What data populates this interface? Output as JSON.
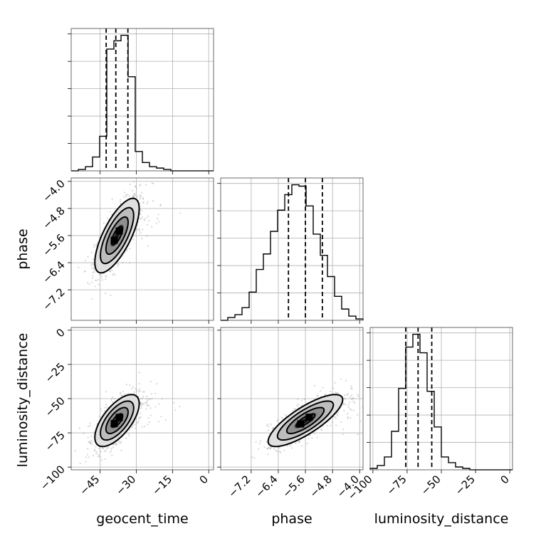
{
  "chart_data": {
    "type": "corner",
    "parameters": [
      "geocent_time",
      "phase",
      "luminosity_distance"
    ],
    "ranges": {
      "geocent_time": [
        -57,
        2
      ],
      "phase": [
        -8.1,
        -3.9
      ],
      "luminosity_distance": [
        -102,
        2
      ]
    },
    "ticks": {
      "geocent_time": [
        -45,
        -30,
        -15,
        0
      ],
      "phase": [
        -7.2,
        -6.4,
        -5.6,
        -4.8,
        -4.0
      ],
      "luminosity_distance": [
        -100,
        -75,
        -50,
        -25,
        0
      ]
    },
    "tick_labels": {
      "geocent_time": [
        "−45",
        "−30",
        "−15",
        "0"
      ],
      "phase": [
        "−7.2",
        "−6.4",
        "−5.6",
        "−4.8",
        "−4.0"
      ],
      "phase_y": [
        "−4.0",
        "−4.8",
        "−5.6",
        "−6.4",
        "−7.2"
      ],
      "luminosity_distance": [
        "−100",
        "−75",
        "−50",
        "−25",
        "0"
      ],
      "luminosity_distance_y": [
        "0",
        "−25",
        "−50",
        "−75",
        "−100"
      ]
    },
    "quantiles": {
      "geocent_time": [
        -42.5,
        -38.5,
        -33.5
      ],
      "phase": [
        -6.1,
        -5.6,
        -5.1
      ],
      "luminosity_distance": [
        -76,
        -67,
        -57
      ]
    },
    "histograms": {
      "geocent_time": {
        "edges": [
          -57,
          -54.05,
          -51.1,
          -48.15,
          -45.2,
          -42.25,
          -39.3,
          -36.35,
          -33.4,
          -30.45,
          -27.5,
          -24.55,
          -21.6,
          -18.65,
          -15.7,
          -12.75,
          -9.8,
          -6.85,
          -3.9,
          -0.95,
          2
        ],
        "counts": [
          0,
          1,
          3,
          10,
          25,
          88,
          94,
          98,
          68,
          14,
          6,
          3,
          2,
          1,
          0,
          0,
          0,
          0,
          0,
          0
        ]
      },
      "phase": {
        "edges": [
          -8.1,
          -7.89,
          -7.68,
          -7.47,
          -7.26,
          -7.05,
          -6.84,
          -6.63,
          -6.42,
          -6.21,
          -6.0,
          -5.79,
          -5.58,
          -5.37,
          -5.16,
          -4.95,
          -4.74,
          -4.53,
          -4.32,
          -4.11,
          -3.9
        ],
        "counts": [
          0,
          2,
          4,
          9,
          20,
          36,
          47,
          63,
          78,
          89,
          96,
          95,
          81,
          61,
          46,
          31,
          17,
          8,
          3,
          1
        ]
      },
      "luminosity_distance": {
        "edges": [
          -102,
          -96.8,
          -91.6,
          -86.4,
          -81.2,
          -76.0,
          -70.8,
          -65.6,
          -60.4,
          -55.2,
          -50.0,
          -44.8,
          -39.6,
          -34.4,
          -29.2,
          -24.0,
          -18.8,
          -13.6,
          -8.4,
          -3.2,
          2
        ],
        "counts": [
          1,
          3,
          9,
          27,
          57,
          86,
          95,
          82,
          55,
          30,
          9,
          5,
          2,
          1,
          0,
          0,
          0,
          0,
          0,
          0
        ]
      }
    },
    "joint": [
      {
        "x": "geocent_time",
        "y": "phase",
        "mean": [
          -38,
          -5.6
        ],
        "sigma": [
          4.6,
          0.55
        ],
        "rho": 0.72,
        "levels_sigma": [
          0.5,
          1.0,
          1.5,
          2.0
        ]
      },
      {
        "x": "geocent_time",
        "y": "luminosity_distance",
        "mean": [
          -38,
          -66
        ],
        "sigma": [
          4.6,
          9.5
        ],
        "rho": 0.65,
        "levels_sigma": [
          0.5,
          1.0,
          1.5,
          2.0
        ]
      },
      {
        "x": "phase",
        "y": "luminosity_distance",
        "mean": [
          -5.6,
          -66
        ],
        "sigma": [
          0.55,
          9.5
        ],
        "rho": 0.8,
        "levels_sigma": [
          0.5,
          1.0,
          1.5,
          2.0
        ]
      }
    ]
  }
}
